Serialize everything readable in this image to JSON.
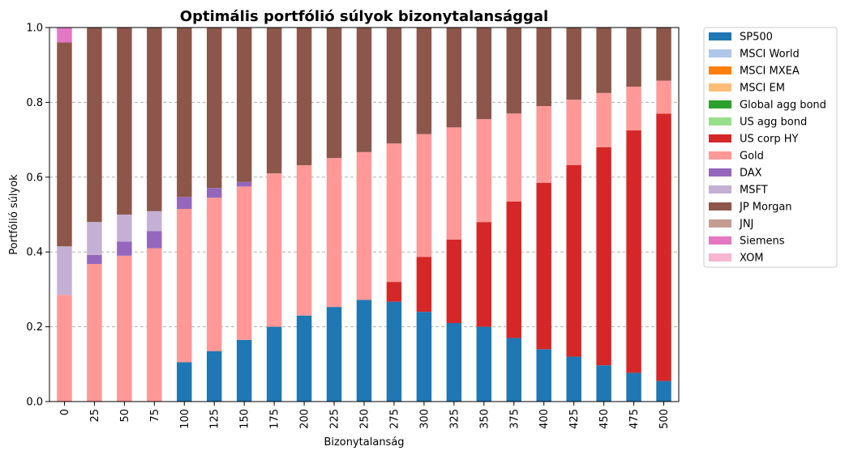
{
  "chart_data": {
    "type": "bar",
    "stacked": true,
    "title": "Optimális portfólió súlyok bizonytalansággal",
    "xlabel": "Bizonytalanság",
    "ylabel": "Portfólió súlyok",
    "ylim": [
      0,
      1
    ],
    "yticks": [
      "0.0",
      "0.2",
      "0.4",
      "0.6",
      "0.8",
      "1.0"
    ],
    "grid": "y-dashed",
    "legend_position": "outside-right",
    "categories": [
      "0",
      "25",
      "50",
      "75",
      "100",
      "125",
      "150",
      "175",
      "200",
      "225",
      "250",
      "275",
      "300",
      "325",
      "350",
      "375",
      "400",
      "425",
      "450",
      "475",
      "500"
    ],
    "series": [
      {
        "name": "SP500",
        "color": "#1f77b4",
        "values": [
          0,
          0,
          0,
          0,
          0.105,
          0.135,
          0.165,
          0.2,
          0.23,
          0.253,
          0.272,
          0.267,
          0.24,
          0.21,
          0.2,
          0.17,
          0.14,
          0.12,
          0.097,
          0.077,
          0.055
        ]
      },
      {
        "name": "MSCI World",
        "color": "#aec7e8",
        "values": [
          0,
          0,
          0,
          0,
          0,
          0,
          0,
          0,
          0,
          0,
          0,
          0,
          0,
          0,
          0,
          0,
          0,
          0,
          0,
          0,
          0
        ]
      },
      {
        "name": "MSCI MXEA",
        "color": "#ff7f0e",
        "values": [
          0,
          0,
          0,
          0,
          0,
          0,
          0,
          0,
          0,
          0,
          0,
          0,
          0,
          0,
          0,
          0,
          0,
          0,
          0,
          0,
          0
        ]
      },
      {
        "name": "MSCI EM",
        "color": "#ffbb78",
        "values": [
          0,
          0,
          0,
          0,
          0,
          0,
          0,
          0,
          0,
          0,
          0,
          0,
          0,
          0,
          0,
          0,
          0,
          0,
          0,
          0,
          0
        ]
      },
      {
        "name": "Global agg bond",
        "color": "#2ca02c",
        "values": [
          0,
          0,
          0,
          0,
          0,
          0,
          0,
          0,
          0,
          0,
          0,
          0,
          0,
          0,
          0,
          0,
          0,
          0,
          0,
          0,
          0
        ]
      },
      {
        "name": "US agg bond",
        "color": "#98df8a",
        "values": [
          0,
          0,
          0,
          0,
          0,
          0,
          0,
          0,
          0,
          0,
          0,
          0,
          0,
          0,
          0,
          0,
          0,
          0,
          0,
          0,
          0
        ]
      },
      {
        "name": "US corp HY",
        "color": "#d62728",
        "values": [
          0,
          0,
          0,
          0,
          0,
          0,
          0,
          0,
          0,
          0,
          0,
          0.053,
          0.147,
          0.223,
          0.28,
          0.365,
          0.445,
          0.512,
          0.583,
          0.648,
          0.715
        ]
      },
      {
        "name": "Gold",
        "color": "#ff9896",
        "values": [
          0.285,
          0.368,
          0.39,
          0.41,
          0.41,
          0.41,
          0.41,
          0.41,
          0.402,
          0.398,
          0.395,
          0.37,
          0.328,
          0.3,
          0.275,
          0.235,
          0.205,
          0.175,
          0.145,
          0.117,
          0.088
        ]
      },
      {
        "name": "DAX",
        "color": "#9467bd",
        "values": [
          0,
          0.024,
          0.038,
          0.046,
          0.032,
          0.026,
          0.012,
          0,
          0,
          0,
          0,
          0,
          0,
          0,
          0,
          0,
          0,
          0,
          0,
          0,
          0
        ]
      },
      {
        "name": "MSFT",
        "color": "#c5b0d5",
        "values": [
          0.13,
          0.088,
          0.072,
          0.053,
          0,
          0,
          0,
          0,
          0,
          0,
          0,
          0,
          0,
          0,
          0,
          0,
          0,
          0,
          0,
          0,
          0
        ]
      },
      {
        "name": "JP Morgan",
        "color": "#8c564b",
        "values": [
          0.545,
          0.52,
          0.5,
          0.491,
          0.453,
          0.429,
          0.413,
          0.39,
          0.368,
          0.349,
          0.333,
          0.31,
          0.285,
          0.267,
          0.245,
          0.23,
          0.21,
          0.193,
          0.175,
          0.158,
          0.142
        ]
      },
      {
        "name": "JNJ",
        "color": "#c49c94",
        "values": [
          0,
          0,
          0,
          0,
          0,
          0,
          0,
          0,
          0,
          0,
          0,
          0,
          0,
          0,
          0,
          0,
          0,
          0,
          0,
          0,
          0
        ]
      },
      {
        "name": "Siemens",
        "color": "#e377c2",
        "values": [
          0.04,
          0,
          0,
          0,
          0,
          0,
          0,
          0,
          0,
          0,
          0,
          0,
          0,
          0,
          0,
          0,
          0,
          0,
          0,
          0,
          0
        ]
      },
      {
        "name": "XOM",
        "color": "#f7b6d2",
        "values": [
          0,
          0,
          0,
          0,
          0,
          0,
          0,
          0,
          0,
          0,
          0,
          0,
          0,
          0,
          0,
          0,
          0,
          0,
          0,
          0,
          0
        ]
      }
    ]
  }
}
